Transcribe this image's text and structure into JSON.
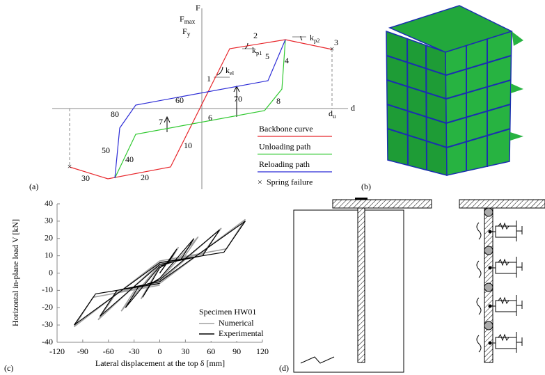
{
  "panel_a": {
    "label": "(a)",
    "axis_force": "F",
    "f_max": {
      "base": "F",
      "sub": "max"
    },
    "f_y": {
      "base": "F",
      "sub": "y"
    },
    "axis_disp": "d",
    "d_u": {
      "base": "d",
      "sub": "u"
    },
    "k_el": {
      "base": "k",
      "sub": "el"
    },
    "k_p1": {
      "base": "k",
      "sub": "p1"
    },
    "k_p2": {
      "base": "k",
      "sub": "p2"
    },
    "path_labels": [
      "1",
      "2",
      "3",
      "4",
      "5",
      "6",
      "7",
      "8",
      "10",
      "20",
      "30",
      "40",
      "50",
      "60",
      "70",
      "80"
    ],
    "legend": [
      {
        "name": "Backbone curve",
        "color": "#e8262b"
      },
      {
        "name": "Unloading path",
        "color": "#2ec82e"
      },
      {
        "name": "Reloading path",
        "color": "#2b2bd6"
      },
      {
        "name": "Spring failure",
        "marker": "×"
      }
    ]
  },
  "panel_b": {
    "label": "(b)"
  },
  "chart_data": {
    "type": "line",
    "label": "(c)",
    "xlabel": "Lateral displacement at the top δ [mm]",
    "ylabel": "Horizontal in-plane load V [kN]",
    "xlim": [
      -120,
      120
    ],
    "xticks": [
      -120,
      -90,
      -60,
      -30,
      0,
      30,
      60,
      90,
      120
    ],
    "ylim": [
      -40,
      40
    ],
    "yticks": [
      -40,
      -30,
      -20,
      -10,
      0,
      10,
      20,
      30,
      40
    ],
    "legend_title": "Specimen HW01",
    "legend_position": "lower right",
    "series": [
      {
        "name": "Numerical",
        "color": "#a0a0a0",
        "x": [
          0,
          22,
          12,
          0,
          -22,
          -12,
          0,
          45,
          28,
          0,
          -45,
          -28,
          0,
          72,
          50,
          0,
          -72,
          -50,
          0,
          100,
          78,
          0,
          -100,
          -78,
          0
        ],
        "values": [
          0,
          15,
          7,
          4,
          -15,
          -7,
          -4,
          21,
          9,
          5,
          -22,
          -9,
          -5,
          26,
          11,
          6,
          -27,
          -11,
          -6,
          31,
          14,
          7,
          -31,
          -14,
          -7
        ]
      },
      {
        "name": "Experimental",
        "color": "#000000",
        "x": [
          0,
          20,
          10,
          0,
          -20,
          -10,
          0,
          40,
          25,
          0,
          -40,
          -25,
          0,
          70,
          50,
          0,
          -70,
          -50,
          0,
          100,
          75,
          0,
          -100,
          -75,
          0
        ],
        "values": [
          0,
          14,
          6,
          3,
          -14,
          -6,
          -3,
          20,
          8,
          4,
          -20,
          -8,
          -4,
          25,
          10,
          5,
          -25,
          -10,
          -5,
          30,
          12,
          6,
          -30,
          -12,
          -6
        ]
      }
    ]
  },
  "panel_d": {
    "label": "(d)"
  }
}
